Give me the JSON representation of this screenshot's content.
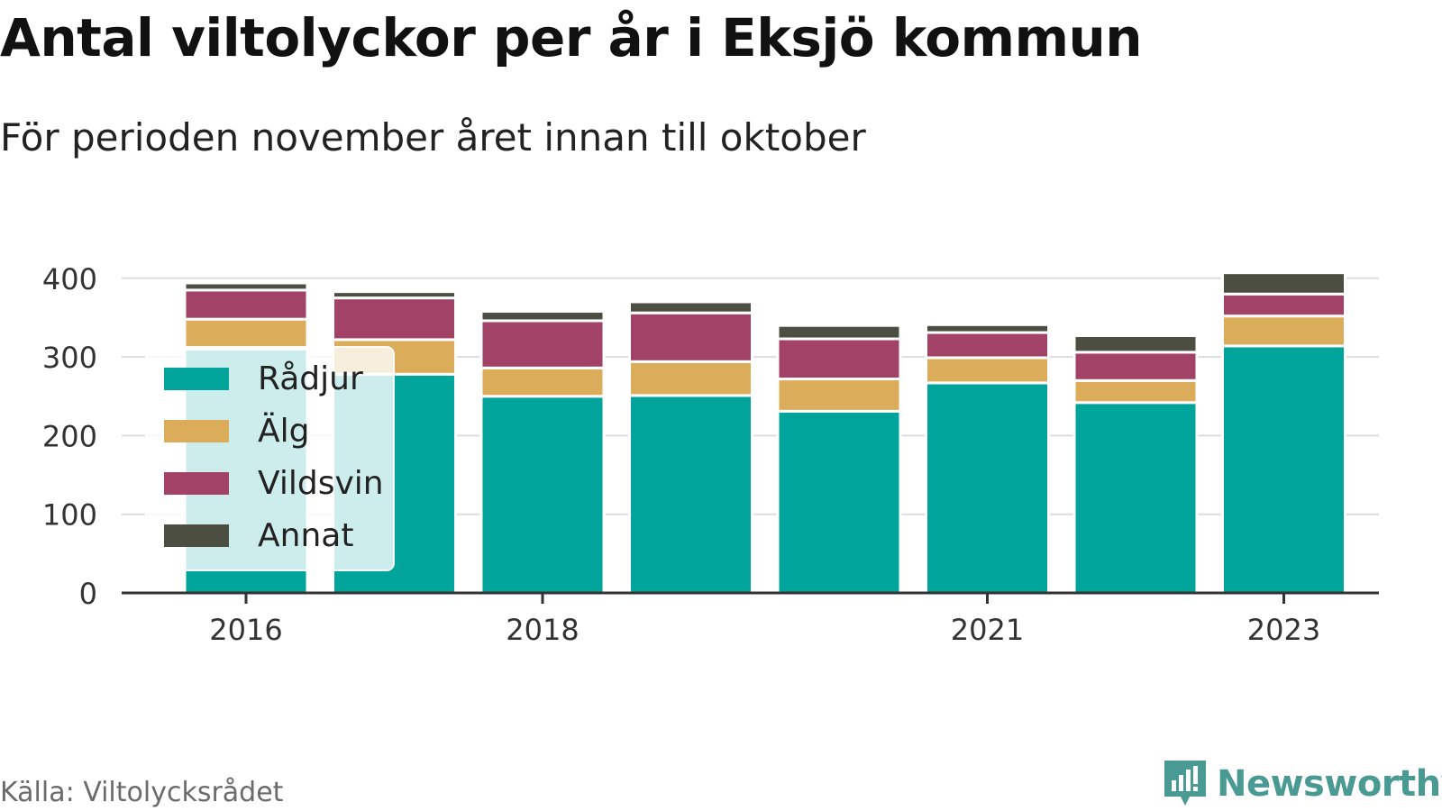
{
  "title": "Antal viltolyckor per år i Eksjö kommun",
  "subtitle": "För perioden november året innan till oktober",
  "source": "Källa: Viltolycksrådet",
  "brand": "Newsworthy",
  "chart_data": {
    "type": "bar",
    "stacked": true,
    "years": [
      2016,
      2017,
      2018,
      2019,
      2020,
      2021,
      2022,
      2023
    ],
    "x_tick_labels": [
      "2016",
      "2018",
      "2021",
      "2023"
    ],
    "y_ticks": [
      0,
      100,
      200,
      300,
      400
    ],
    "ylim": [
      0,
      420
    ],
    "grid": true,
    "legend_position": "left",
    "series": [
      {
        "name": "Rådjur",
        "color": "#00a49a",
        "values": [
          310,
          278,
          250,
          251,
          231,
          267,
          242,
          314
        ]
      },
      {
        "name": "Älg",
        "color": "#dbac5a",
        "values": [
          38,
          44,
          36,
          43,
          41,
          32,
          28,
          38
        ]
      },
      {
        "name": "Vildsvin",
        "color": "#a24266",
        "values": [
          37,
          53,
          60,
          62,
          51,
          32,
          36,
          28
        ]
      },
      {
        "name": "Annat",
        "color": "#4b4e40",
        "values": [
          9,
          8,
          12,
          14,
          17,
          10,
          21,
          27
        ]
      }
    ]
  }
}
